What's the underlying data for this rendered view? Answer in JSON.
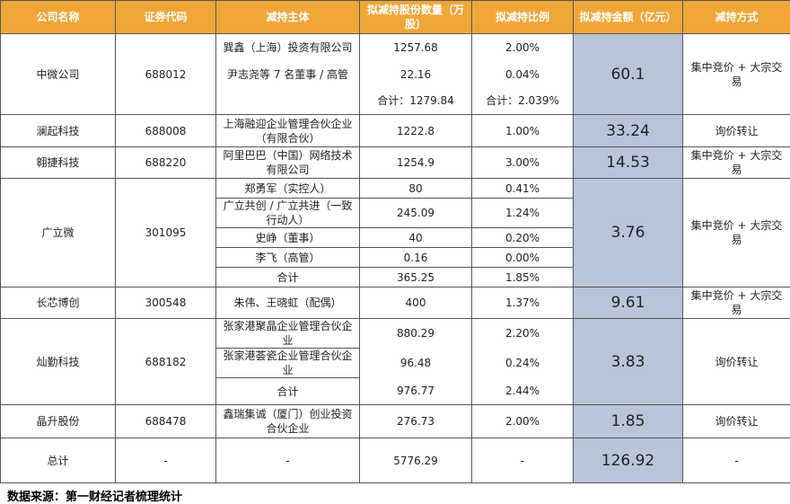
{
  "header": {
    "columns": [
      "公司名称",
      "证券代码",
      "减持主体",
      "拟减持股份数量（万股）",
      "拟减持比例",
      "拟减持金额（亿元）",
      "减持方式"
    ]
  },
  "rows": [
    {
      "company": "中微公司",
      "code": "688012",
      "holders": [
        {
          "name": "巽鑫（上海）投资有限公司",
          "shares": "1257.68",
          "ratio": "2.00%"
        },
        {
          "name": "尹志尧等 7 名董事 / 高管",
          "shares": "22.16",
          "ratio": "0.04%"
        }
      ],
      "subtotal": {
        "shares": "合计：1279.84",
        "ratio": "合计：2.039%"
      },
      "amount": "60.1",
      "method": "集中竞价 + 大宗交易"
    },
    {
      "company": "澜起科技",
      "code": "688008",
      "holders": [
        {
          "name": "上海融迎企业管理合伙企业（有限合伙）",
          "shares": "1222.8",
          "ratio": "1.00%"
        }
      ],
      "amount": "33.24",
      "method": "询价转让"
    },
    {
      "company": "翱捷科技",
      "code": "688220",
      "holders": [
        {
          "name": "阿里巴巴（中国）网络技术有限公司",
          "shares": "1254.9",
          "ratio": "3.00%"
        }
      ],
      "amount": "14.53",
      "method": "集中竞价 + 大宗交易"
    },
    {
      "company": "广立微",
      "code": "301095",
      "holders": [
        {
          "name": "郑勇军（实控人）",
          "shares": "80",
          "ratio": "0.41%"
        },
        {
          "name": "广立共创 / 广立共进（一致行动人）",
          "shares": "245.09",
          "ratio": "1.24%"
        },
        {
          "name": "史峥（董事）",
          "shares": "40",
          "ratio": "0.20%"
        },
        {
          "name": "李飞（高管）",
          "shares": "0.16",
          "ratio": "0.00%"
        }
      ],
      "subtotal": {
        "name": "合计",
        "shares": "365.25",
        "ratio": "1.85%"
      },
      "amount": "3.76",
      "method": "集中竞价 + 大宗交易"
    },
    {
      "company": "长芯博创",
      "code": "300548",
      "holders": [
        {
          "name": "朱伟、王晓虹（配偶）",
          "shares": "400",
          "ratio": "1.37%"
        }
      ],
      "amount": "9.61",
      "method": "集中竞价 + 大宗交易"
    },
    {
      "company": "灿勤科技",
      "code": "688182",
      "holders": [
        {
          "name": "张家港聚晶企业管理合伙企业",
          "shares": "880.29",
          "ratio": "2.20%"
        },
        {
          "name": "张家港荟瓷企业管理合伙企业",
          "shares": "96.48",
          "ratio": "0.24%"
        }
      ],
      "subtotal": {
        "name": "合计",
        "shares": "976.77",
        "ratio": "2.44%"
      },
      "amount": "3.83",
      "method": "询价转让"
    },
    {
      "company": "晶升股份",
      "code": "688478",
      "holders": [
        {
          "name": "鑫瑞集诚（厦门）创业投资合伙企业",
          "shares": "276.73",
          "ratio": "2.00%"
        }
      ],
      "amount": "1.85",
      "method": "询价转让"
    }
  ],
  "total": {
    "company": "总计",
    "code": "-",
    "name": "-",
    "shares": "5776.29",
    "ratio": "-",
    "amount": "126.92",
    "method": "-"
  },
  "source": "数据来源：第一财经记者梳理统计"
}
